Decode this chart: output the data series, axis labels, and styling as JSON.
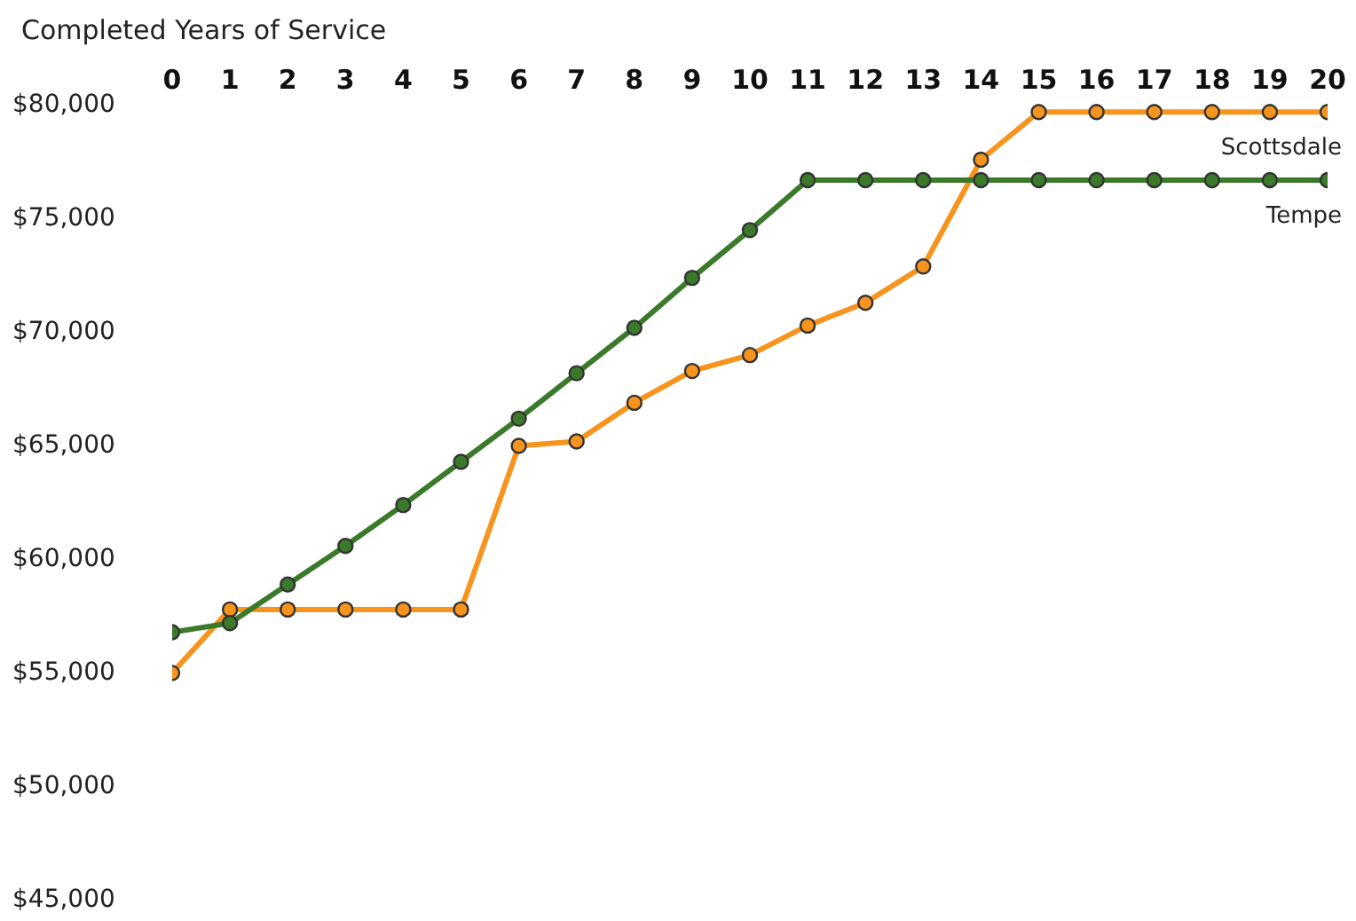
{
  "chart_data": {
    "type": "line",
    "xlabel": "Completed Years of Service",
    "x": [
      0,
      1,
      2,
      3,
      4,
      5,
      6,
      7,
      8,
      9,
      10,
      11,
      12,
      13,
      14,
      15,
      16,
      17,
      18,
      19,
      20
    ],
    "xlim": [
      0,
      20
    ],
    "xticks": [
      0,
      1,
      2,
      3,
      4,
      5,
      6,
      7,
      8,
      9,
      10,
      11,
      12,
      13,
      14,
      15,
      16,
      17,
      18,
      19,
      20
    ],
    "ylim": [
      45000,
      80000
    ],
    "yticks": [
      {
        "value": 45000,
        "label": "$45,000"
      },
      {
        "value": 50000,
        "label": "$50,000"
      },
      {
        "value": 55000,
        "label": "$55,000"
      },
      {
        "value": 60000,
        "label": "$60,000"
      },
      {
        "value": 65000,
        "label": "$65,000"
      },
      {
        "value": 70000,
        "label": "$70,000"
      },
      {
        "value": 75000,
        "label": "$75,000"
      },
      {
        "value": 80000,
        "label": "$80,000"
      }
    ],
    "grid": false,
    "marker": "circle",
    "line_style": "solid",
    "series": [
      {
        "name": "Scottsdale",
        "color": "#f7941d",
        "values": [
          54900,
          57700,
          57700,
          57700,
          57700,
          57700,
          64900,
          65100,
          66800,
          68200,
          68900,
          70200,
          71200,
          72800,
          77500,
          79600,
          79600,
          79600,
          79600,
          79600,
          79600
        ]
      },
      {
        "name": "Tempe",
        "color": "#3b7a2a",
        "values": [
          56700,
          57100,
          58800,
          60500,
          62300,
          64200,
          66100,
          68100,
          70100,
          72300,
          74400,
          76600,
          76600,
          76600,
          76600,
          76600,
          76600,
          76600,
          76600,
          76600,
          76600
        ]
      }
    ]
  }
}
